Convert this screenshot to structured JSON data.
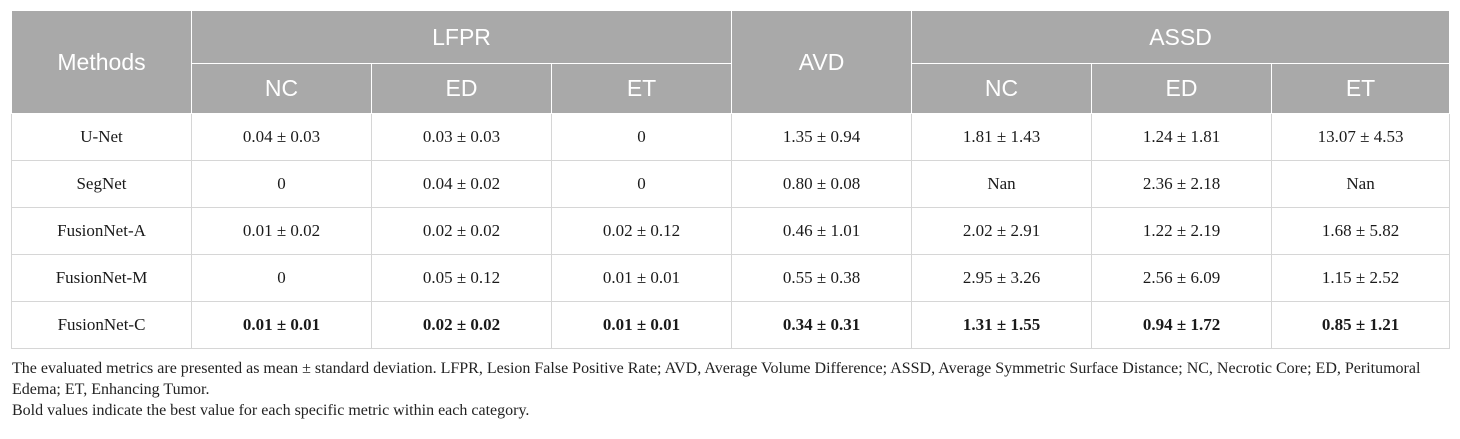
{
  "table": {
    "header": {
      "methods": "Methods",
      "lfpr": "LFPR",
      "avd": "AVD",
      "assd": "ASSD",
      "lfpr_sub": [
        "NC",
        "ED",
        "ET"
      ],
      "assd_sub": [
        "NC",
        "ED",
        "ET"
      ]
    },
    "rows": [
      {
        "method": "U-Net",
        "cells": [
          "0.04 ± 0.03",
          "0.03 ± 0.03",
          "0",
          "1.35 ± 0.94",
          "1.81 ± 1.43",
          "1.24 ± 1.81",
          "13.07 ± 4.53"
        ]
      },
      {
        "method": "SegNet",
        "cells": [
          "0",
          "0.04 ± 0.02",
          "0",
          "0.80 ± 0.08",
          "Nan",
          "2.36 ± 2.18",
          "Nan"
        ]
      },
      {
        "method": "FusionNet-A",
        "cells": [
          "0.01 ± 0.02",
          "0.02 ± 0.02",
          "0.02 ± 0.12",
          "0.46 ± 1.01",
          "2.02 ± 2.91",
          "1.22 ± 2.19",
          "1.68 ± 5.82"
        ]
      },
      {
        "method": "FusionNet-M",
        "cells": [
          "0",
          "0.05 ± 0.12",
          "0.01 ± 0.01",
          "0.55 ± 0.38",
          "2.95 ± 3.26",
          "2.56 ± 6.09",
          "1.15 ± 2.52"
        ]
      },
      {
        "method": "FusionNet-C",
        "cells": [
          "0.01 ± 0.01",
          "0.02 ± 0.02",
          "0.01 ± 0.01",
          "0.34 ± 0.31",
          "1.31 ± 1.55",
          "0.94 ± 1.72",
          "0.85 ± 1.21"
        ]
      }
    ]
  },
  "notes": {
    "line1": "The evaluated metrics are presented as mean ± standard deviation. LFPR, Lesion False Positive Rate; AVD, Average Volume Difference; ASSD, Average Symmetric Surface Distance; NC, Necrotic Core; ED, Peritumoral Edema; ET, Enhancing Tumor.",
    "line2": "Bold values indicate the best value for each specific metric within each category."
  },
  "colors": {
    "header_bg": "#a9a9a9",
    "header_text": "#ffffff",
    "grid": "#d6d6d6"
  }
}
